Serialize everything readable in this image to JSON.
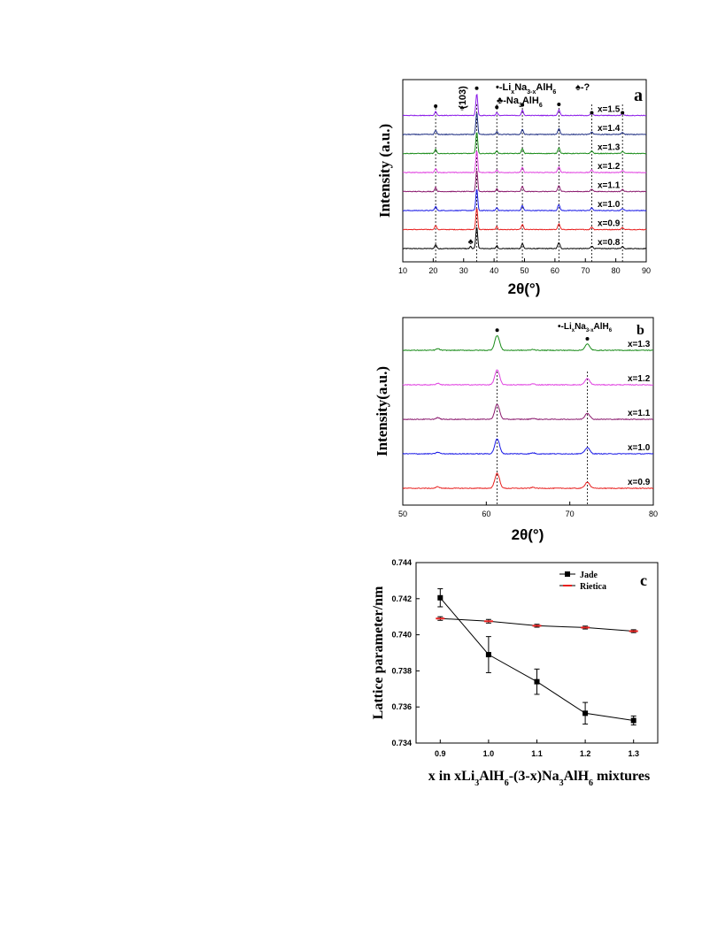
{
  "chart_data": [
    {
      "panel": "a",
      "type": "line",
      "xlabel": "2θ(°)",
      "ylabel": "Intensity (a.u.)",
      "xlim": [
        10,
        90
      ],
      "xticks": [
        10,
        20,
        30,
        40,
        50,
        60,
        70,
        80,
        90
      ],
      "legend": [
        "•-LixNa3-xAlH6",
        "♣-Na3AlH6",
        "♠-?"
      ],
      "annotation": "(103)",
      "marker_peaks": [
        20.8,
        34.3,
        40.9,
        49.3,
        61.3,
        72.1,
        82.2
      ],
      "unknown_peak": 29.5,
      "na3alh6_peak": 32.3,
      "series": [
        {
          "name": "x=0.8",
          "color": "#000000"
        },
        {
          "name": "x=0.9",
          "color": "#e8201f"
        },
        {
          "name": "x=1.0",
          "color": "#1a1ae6"
        },
        {
          "name": "x=1.1",
          "color": "#8b1a6e"
        },
        {
          "name": "x=1.2",
          "color": "#e040e0"
        },
        {
          "name": "x=1.3",
          "color": "#1a8c1a"
        },
        {
          "name": "x=1.4",
          "color": "#1a2a80"
        },
        {
          "name": "x=1.5",
          "color": "#8a1ae8"
        }
      ],
      "peaks": [
        {
          "x": 20.8,
          "h": 0.7,
          "w": 0.45
        },
        {
          "x": 32.3,
          "h": 0.4,
          "w": 0.35
        },
        {
          "x": 34.3,
          "h": 3.8,
          "w": 0.42
        },
        {
          "x": 40.9,
          "h": 0.5,
          "w": 0.4
        },
        {
          "x": 49.3,
          "h": 0.9,
          "w": 0.45
        },
        {
          "x": 61.3,
          "h": 1.0,
          "w": 0.5
        },
        {
          "x": 72.1,
          "h": 0.45,
          "w": 0.5
        },
        {
          "x": 82.2,
          "h": 0.35,
          "w": 0.5
        }
      ],
      "dashed_lines": [
        20.8,
        34.3,
        40.9,
        49.3,
        61.3,
        72.1,
        82.2
      ]
    },
    {
      "panel": "b",
      "type": "line",
      "xlabel": "2θ(°)",
      "ylabel": "Intensity(a.u.)",
      "xlim": [
        50,
        80
      ],
      "xticks": [
        50,
        60,
        70,
        80
      ],
      "legend": [
        "•-LixNa3-xAlH6"
      ],
      "series": [
        {
          "name": "x=0.9",
          "color": "#e8201f"
        },
        {
          "name": "x=1.0",
          "color": "#1a1ae6"
        },
        {
          "name": "x=1.1",
          "color": "#8b1a6e"
        },
        {
          "name": "x=1.2",
          "color": "#e040e0"
        },
        {
          "name": "x=1.3",
          "color": "#1a8c1a"
        }
      ],
      "peaks": [
        {
          "x": 54.2,
          "h": 0.25,
          "w": 0.3
        },
        {
          "x": 61.3,
          "h": 2.4,
          "w": 0.4
        },
        {
          "x": 65.6,
          "h": 0.15,
          "w": 0.3
        },
        {
          "x": 72.1,
          "h": 1.0,
          "w": 0.4
        }
      ],
      "dashed_lines": [
        61.3,
        72.1
      ],
      "marker_peaks": [
        61.3,
        72.1
      ]
    },
    {
      "panel": "c",
      "type": "scatter",
      "xlabel": "x in xLi3AlH6-(3-x)Na3AlH6 mixtures",
      "ylabel": "Lattice parameter/nm",
      "xlim": [
        0.85,
        1.35
      ],
      "ylim": [
        0.734,
        0.744
      ],
      "xticks": [
        0.9,
        1.0,
        1.1,
        1.2,
        1.3
      ],
      "yticks": [
        0.734,
        0.736,
        0.738,
        0.74,
        0.742,
        0.744
      ],
      "x": [
        0.9,
        1.0,
        1.1,
        1.2,
        1.3
      ],
      "series": [
        {
          "name": "Jade",
          "values": [
            0.74205,
            0.7389,
            0.7374,
            0.73565,
            0.73525
          ],
          "errors": [
            0.0005,
            0.001,
            0.0007,
            0.0006,
            0.00025
          ],
          "color": "#000000"
        },
        {
          "name": "Rietica",
          "values": [
            0.7409,
            0.74075,
            0.7405,
            0.7404,
            0.7402
          ],
          "errors": [
            0.0001,
            0.0001,
            8e-05,
            8e-05,
            8e-05
          ],
          "color": "#000000",
          "marker_color": "#e8201f"
        }
      ]
    }
  ],
  "labels": {
    "a_panel": "a",
    "b_panel": "b",
    "c_panel": "c",
    "a_xlabel": "2θ(°)",
    "a_ylabel": "Intensity (a.u.)",
    "b_xlabel": "2θ(°)",
    "b_ylabel": "Intensity(a.u.)",
    "c_ylabel": "Lattice parameter/nm",
    "c_xlabel_prefix": "x in xLi",
    "c_xlabel_sub1": "3",
    "c_xlabel_mid1": "AlH",
    "c_xlabel_sub2": "6",
    "c_xlabel_mid2": "-(3-x)Na",
    "c_xlabel_sub3": "3",
    "c_xlabel_mid3": "AlH",
    "c_xlabel_sub4": "6",
    "c_xlabel_suffix": " mixtures",
    "legend_li_prefix": "•-Li",
    "legend_li_x": "x",
    "legend_li_na": "Na",
    "legend_li_3x": "3-x",
    "legend_li_alh": "AlH",
    "legend_li_6": "6",
    "legend_na_prefix": "♣-Na",
    "legend_na_3": "3",
    "legend_na_alh": "AlH",
    "legend_na_6": "6",
    "legend_unknown": "♠-?",
    "annotation_103": "(103)",
    "legend_jade": "Jade",
    "legend_rietica": "Rietica"
  }
}
